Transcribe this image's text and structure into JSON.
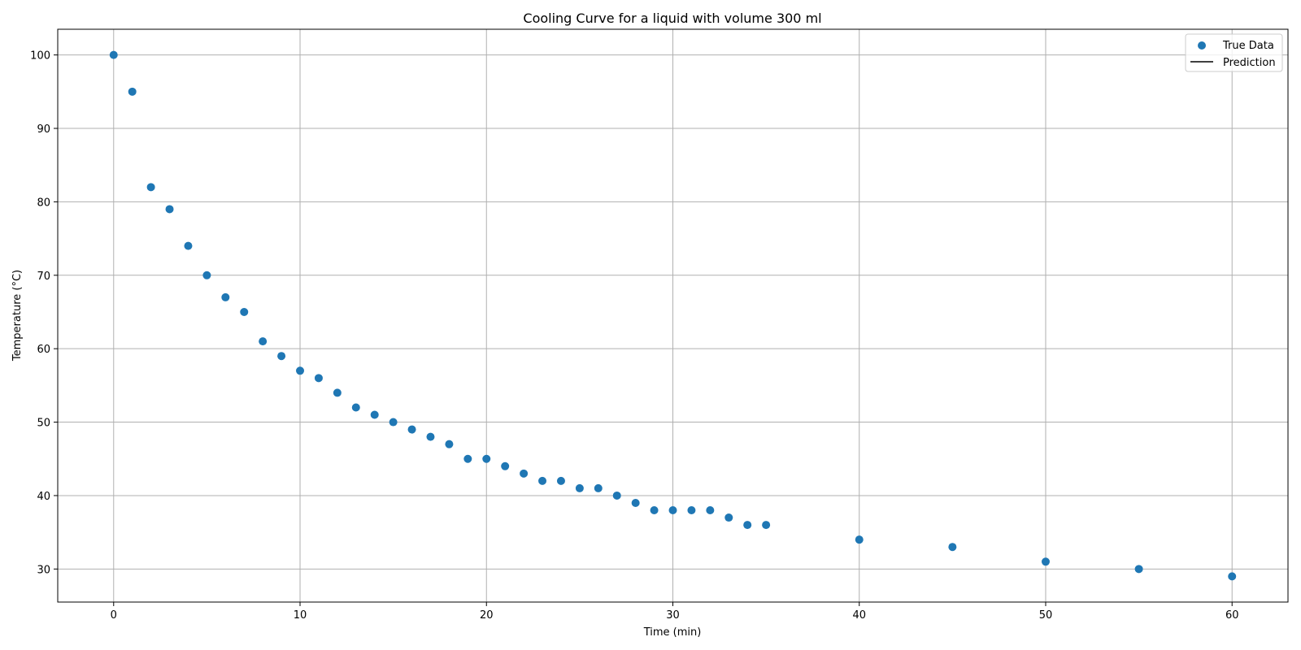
{
  "chart_data": {
    "type": "scatter",
    "title": "Cooling Curve for a liquid with volume 300 ml",
    "xlabel": "Time (min)",
    "ylabel": "Temperature (°C)",
    "xlim": [
      -3,
      63
    ],
    "ylim": [
      25.5,
      103.5
    ],
    "xticks": [
      0,
      10,
      20,
      30,
      40,
      50,
      60
    ],
    "yticks": [
      30,
      40,
      50,
      60,
      70,
      80,
      90,
      100
    ],
    "grid": true,
    "legend_position": "top-right",
    "series": [
      {
        "name": "True Data",
        "kind": "scatter",
        "color": "#1f77b4",
        "x": [
          0,
          1,
          2,
          3,
          4,
          5,
          6,
          7,
          8,
          9,
          10,
          11,
          12,
          13,
          14,
          15,
          16,
          17,
          18,
          19,
          20,
          21,
          22,
          23,
          24,
          25,
          26,
          27,
          28,
          29,
          30,
          31,
          32,
          33,
          34,
          35,
          40,
          45,
          50,
          55,
          60
        ],
        "y": [
          100,
          95,
          82,
          79,
          74,
          70,
          67,
          65,
          61,
          59,
          57,
          56,
          54,
          52,
          51,
          50,
          49,
          48,
          47,
          45,
          45,
          44,
          43,
          42,
          42,
          41,
          41,
          40,
          39,
          38,
          38,
          38,
          38,
          37,
          36,
          36,
          34,
          33,
          31,
          30,
          29
        ]
      },
      {
        "name": "Prediction",
        "kind": "line",
        "color": "#000000",
        "x": [],
        "y": []
      }
    ]
  }
}
